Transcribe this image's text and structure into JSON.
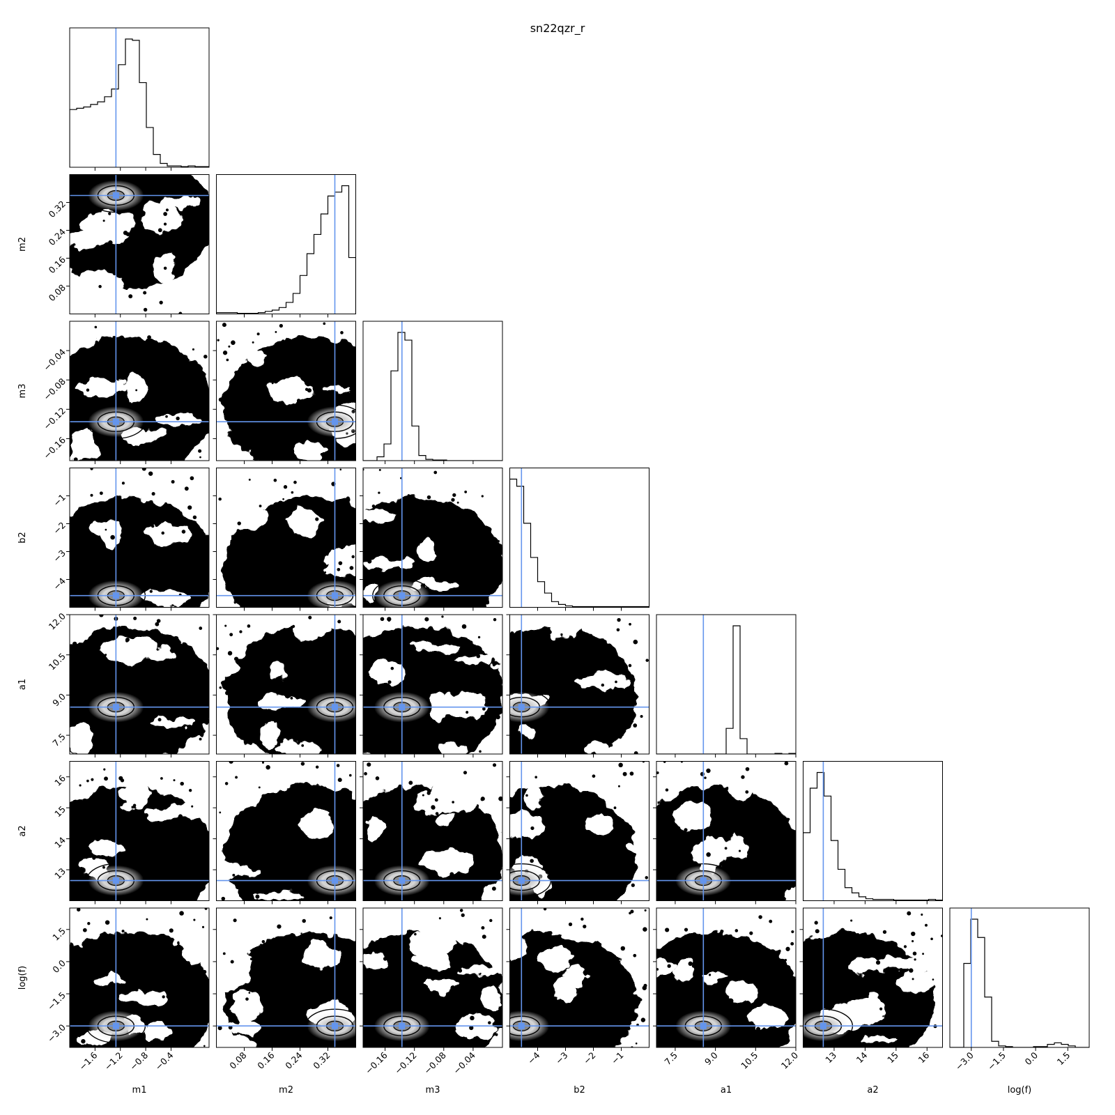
{
  "chart_data": {
    "type": "corner",
    "title": "sn22qzr_r",
    "truth_color": "#6495ed",
    "parameters": [
      {
        "label": "m1",
        "range": [
          -2.0,
          0.2
        ],
        "ticks": [
          -1.6,
          -1.2,
          -0.8,
          -0.4
        ],
        "tick_labels": [
          "−1.6",
          "−1.2",
          "−0.8",
          "−0.4"
        ],
        "truth": -1.27,
        "hist": [
          0.45,
          0.46,
          0.47,
          0.49,
          0.51,
          0.55,
          0.61,
          0.8,
          1.0,
          0.99,
          0.66,
          0.31,
          0.1,
          0.03,
          0.01,
          0.01,
          0.005,
          0.01,
          0.005,
          0.005
        ]
      },
      {
        "label": "m2",
        "range": [
          0.0,
          0.4
        ],
        "ticks": [
          0.08,
          0.16,
          0.24,
          0.32
        ],
        "tick_labels": [
          "0.08",
          "0.16",
          "0.24",
          "0.32"
        ],
        "truth": 0.34,
        "hist": [
          0.01,
          0.01,
          0.01,
          0.005,
          0.005,
          0.005,
          0.01,
          0.02,
          0.03,
          0.05,
          0.09,
          0.16,
          0.3,
          0.47,
          0.62,
          0.78,
          0.92,
          0.95,
          1.0,
          0.44
        ]
      },
      {
        "label": "m3",
        "range": [
          -0.19,
          0.0
        ],
        "ticks": [
          -0.16,
          -0.12,
          -0.08,
          -0.04
        ],
        "tick_labels": [
          "−0.16",
          "−0.12",
          "−0.08",
          "−0.04"
        ],
        "truth": -0.137,
        "hist": [
          0.0,
          0.0,
          0.03,
          0.13,
          0.7,
          1.0,
          0.94,
          0.27,
          0.04,
          0.01,
          0.005,
          0.005,
          0.0,
          0.0,
          0.0,
          0.0,
          0.0,
          0.0,
          0.0,
          0.0
        ]
      },
      {
        "label": "b2",
        "range": [
          -5.0,
          0.0
        ],
        "ticks": [
          -4,
          -3,
          -2,
          -1
        ],
        "tick_labels": [
          "−4",
          "−3",
          "−2",
          "−1"
        ],
        "truth": -4.58,
        "hist": [
          0.9,
          0.85,
          0.59,
          0.35,
          0.18,
          0.1,
          0.04,
          0.02,
          0.01,
          0.005,
          0.005,
          0.005,
          0.005,
          0.005,
          0.005,
          0.005,
          0.005,
          0.005,
          0.005,
          0.005
        ]
      },
      {
        "label": "a1",
        "range": [
          6.8,
          12.0
        ],
        "ticks": [
          7.5,
          9.0,
          10.5,
          12.0
        ],
        "tick_labels": [
          "7.5",
          "9.0",
          "10.5",
          "12.0"
        ],
        "truth": 8.55,
        "hist": [
          0.0,
          0.0,
          0.0,
          0.0,
          0.0,
          0.0,
          0.0,
          0.0,
          0.0,
          0.0,
          0.2,
          1.0,
          0.12,
          0.0,
          0.0,
          0.0,
          0.0,
          0.005,
          0.0,
          0.005
        ]
      },
      {
        "label": "a2",
        "range": [
          12.0,
          16.5
        ],
        "ticks": [
          13,
          14,
          15,
          16
        ],
        "tick_labels": [
          "13",
          "14",
          "15",
          "16"
        ],
        "truth": 12.65,
        "hist": [
          0.52,
          0.86,
          0.98,
          0.8,
          0.46,
          0.24,
          0.1,
          0.06,
          0.03,
          0.015,
          0.01,
          0.01,
          0.01,
          0.005,
          0.005,
          0.005,
          0.005,
          0.005,
          0.01,
          0.005
        ]
      },
      {
        "label": "log(f)",
        "range": [
          -4.0,
          2.5
        ],
        "ticks": [
          -3.0,
          -1.5,
          0.0,
          1.5
        ],
        "tick_labels": [
          "−3.0",
          "−1.5",
          "0.0",
          "1.5"
        ],
        "truth": -3.0,
        "hist": [
          0.0,
          0.0,
          0.55,
          0.84,
          0.72,
          0.33,
          0.04,
          0.01,
          0.005,
          0.0,
          0.0,
          0.0,
          0.005,
          0.005,
          0.02,
          0.03,
          0.02,
          0.01,
          0.0,
          0.0
        ]
      }
    ],
    "x_tick_rotation_deg": 45,
    "grid": false,
    "legend": "none"
  }
}
